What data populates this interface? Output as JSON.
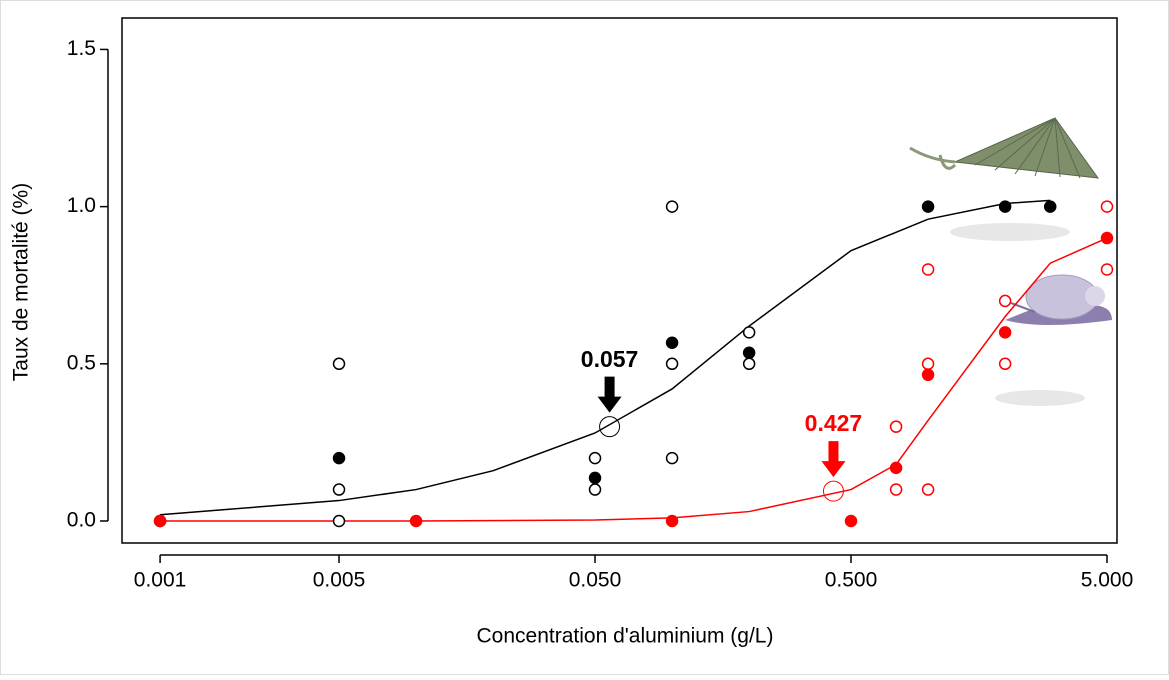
{
  "chart_data": {
    "type": "scatter",
    "log_x": true,
    "xlabel": "Concentration d'aluminium (g/L)",
    "ylabel": "Taux de mortalité (%)",
    "xlim": [
      0.00071,
      5.47
    ],
    "ylim": [
      -0.07,
      1.6
    ],
    "xticks": [
      0.001,
      0.005,
      {
        "value": 0.05,
        "label": "0.050"
      },
      {
        "value": 0.5,
        "label": "0.500"
      },
      {
        "value": 5,
        "label": "5.000"
      }
    ],
    "yticks": [
      {
        "value": 0,
        "label": "0.0"
      },
      0.5,
      {
        "value": 1,
        "label": "1.0"
      },
      1.5
    ],
    "series": [
      {
        "color": "#000000",
        "filled": true,
        "x": [
          0.001,
          0.005,
          0.05,
          0.1,
          0.2,
          1.0,
          2.0,
          3.0
        ],
        "values": [
          0,
          0.2,
          0.137,
          0.567,
          0.535,
          1.0,
          1.0,
          1.0
        ]
      },
      {
        "color": "#000000",
        "filled": false,
        "x": [
          0.005,
          0.005,
          0.005,
          0.05,
          0.05,
          0.1,
          0.1,
          0.1,
          0.2,
          0.2
        ],
        "values": [
          0.5,
          0.1,
          0,
          0.2,
          0.1,
          1.0,
          0.5,
          0.2,
          0.6,
          0.5
        ]
      },
      {
        "color": "#ff0000",
        "filled": true,
        "x": [
          0.001,
          0.01,
          0.1,
          0.5,
          0.75,
          1.0,
          2.0,
          5.0
        ],
        "values": [
          0,
          0,
          0,
          0,
          0.169,
          0.465,
          0.6,
          0.9
        ]
      },
      {
        "color": "#ff0000",
        "filled": false,
        "x": [
          0.75,
          0.75,
          1.0,
          1.0,
          1.0,
          2.0,
          2.0,
          5.0,
          5.0
        ],
        "values": [
          0.3,
          0.1,
          0.8,
          0.5,
          0.1,
          0.7,
          0.5,
          1.0,
          0.8
        ]
      }
    ],
    "fits": [
      {
        "color": "#000000",
        "x": [
          0.001,
          0.005,
          0.01,
          0.02,
          0.05,
          0.1,
          0.2,
          0.5,
          1.0,
          2.0,
          3.0
        ],
        "values": [
          0.02,
          0.065,
          0.1,
          0.16,
          0.28,
          0.42,
          0.62,
          0.86,
          0.96,
          1.01,
          1.02
        ]
      },
      {
        "color": "#ff0000",
        "x": [
          0.001,
          0.01,
          0.05,
          0.1,
          0.2,
          0.5,
          0.75,
          1.0,
          2.0,
          3.0,
          5.0
        ],
        "values": [
          0,
          0,
          0.003,
          0.01,
          0.03,
          0.1,
          0.18,
          0.32,
          0.65,
          0.82,
          0.9
        ]
      }
    ],
    "annotations": [
      {
        "text": "0.057",
        "x": 0.057,
        "y": 0.3,
        "color": "#000000"
      },
      {
        "text": "0.427",
        "x": 0.427,
        "y": 0.095,
        "color": "#ff0000"
      }
    ]
  }
}
